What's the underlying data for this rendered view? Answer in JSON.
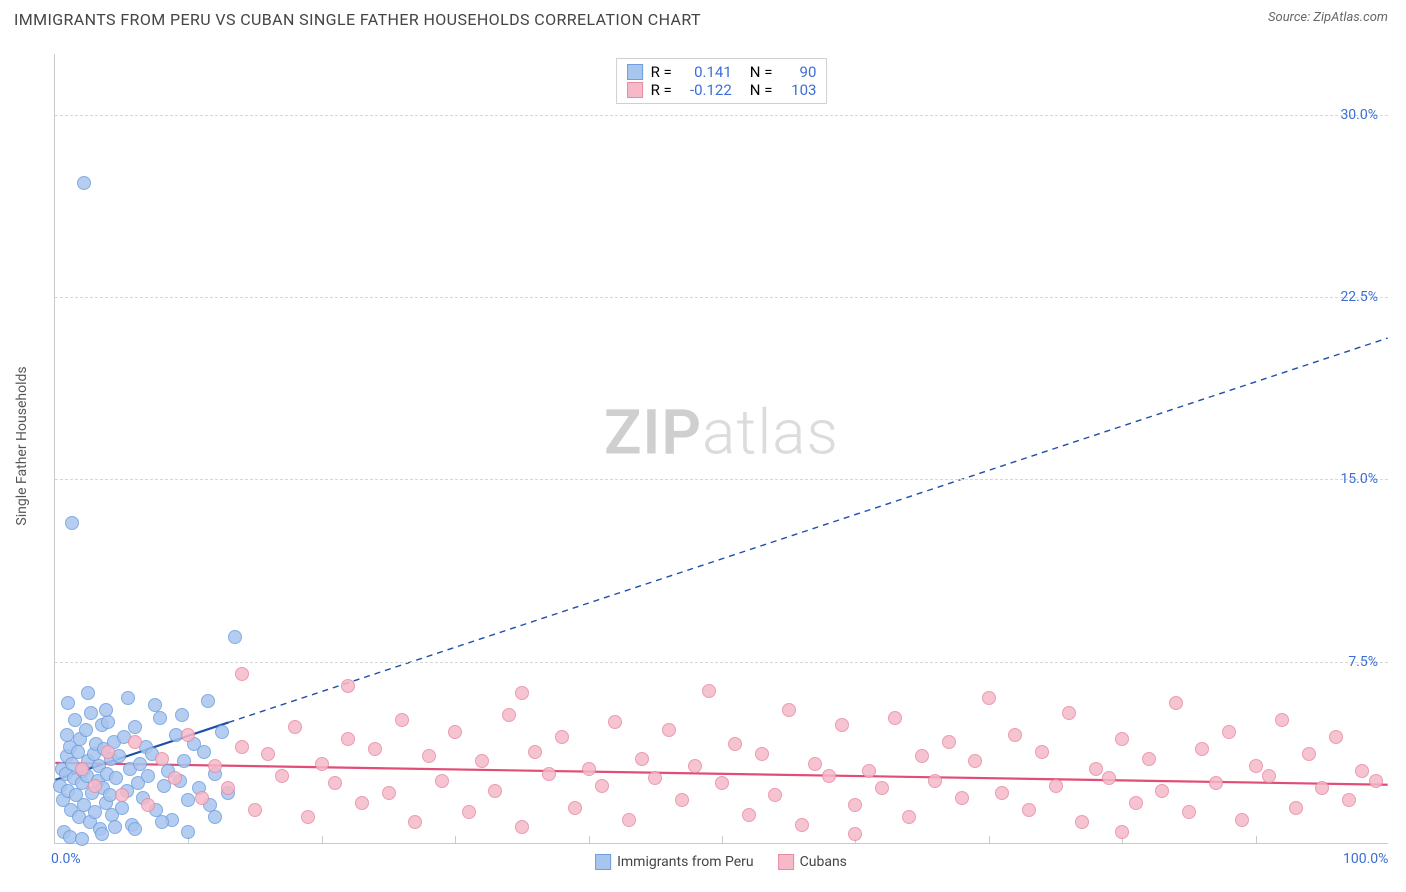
{
  "title": "IMMIGRANTS FROM PERU VS CUBAN SINGLE FATHER HOUSEHOLDS CORRELATION CHART",
  "source": "Source: ZipAtlas.com",
  "watermark_bold": "ZIP",
  "watermark_rest": "atlas",
  "ylabel": "Single Father Households",
  "chart": {
    "type": "scatter",
    "xlim": [
      0,
      100
    ],
    "ylim": [
      0,
      32.5
    ],
    "x_ticks": [
      0,
      100
    ],
    "x_tick_labels": [
      "0.0%",
      "100.0%"
    ],
    "x_minor_ticks": [
      10,
      20,
      30,
      40,
      50,
      60,
      70,
      80,
      90
    ],
    "y_grid": [
      7.5,
      15.0,
      22.5,
      30.0
    ],
    "y_grid_labels": [
      "7.5%",
      "15.0%",
      "22.5%",
      "30.0%"
    ],
    "background_color": "#ffffff",
    "grid_color": "#d7d7d7",
    "axis_color": "#c9c9c9",
    "tick_label_color_x": "#3b6fd6",
    "tick_label_color_y": "#3b6fd6",
    "marker_radius": 7,
    "marker_stroke_width": 1.2,
    "marker_fill_opacity": 0.35,
    "series": [
      {
        "id": "peru",
        "label": "Immigrants from Peru",
        "color_stroke": "#6f9fe0",
        "color_fill": "#a8c5ee",
        "R": "0.141",
        "N": "90",
        "trend": {
          "x1": 0,
          "y1": 2.6,
          "x2": 100,
          "y2": 20.8,
          "solid_until_x": 13,
          "color": "#1f4fa8",
          "width": 2.2
        },
        "points": [
          [
            0.4,
            2.4
          ],
          [
            0.5,
            3.1
          ],
          [
            0.6,
            1.8
          ],
          [
            0.8,
            2.9
          ],
          [
            0.9,
            3.6
          ],
          [
            1.0,
            2.2
          ],
          [
            1.1,
            4.0
          ],
          [
            1.2,
            1.4
          ],
          [
            1.3,
            3.3
          ],
          [
            1.4,
            2.7
          ],
          [
            1.5,
            5.1
          ],
          [
            1.6,
            2.0
          ],
          [
            1.7,
            3.8
          ],
          [
            1.8,
            1.1
          ],
          [
            1.9,
            4.3
          ],
          [
            2.0,
            2.5
          ],
          [
            2.1,
            3.0
          ],
          [
            2.2,
            1.6
          ],
          [
            2.3,
            4.7
          ],
          [
            2.4,
            2.8
          ],
          [
            2.5,
            3.4
          ],
          [
            2.6,
            0.9
          ],
          [
            2.7,
            5.4
          ],
          [
            2.8,
            2.1
          ],
          [
            2.9,
            3.7
          ],
          [
            3.0,
            1.3
          ],
          [
            3.1,
            4.1
          ],
          [
            3.2,
            2.6
          ],
          [
            3.3,
            3.2
          ],
          [
            3.4,
            0.6
          ],
          [
            3.5,
            4.9
          ],
          [
            3.6,
            2.3
          ],
          [
            3.7,
            3.9
          ],
          [
            3.8,
            1.7
          ],
          [
            3.9,
            2.9
          ],
          [
            4.0,
            5.0
          ],
          [
            4.1,
            2.0
          ],
          [
            4.2,
            3.5
          ],
          [
            4.3,
            1.2
          ],
          [
            4.4,
            4.2
          ],
          [
            4.6,
            2.7
          ],
          [
            4.8,
            3.6
          ],
          [
            5.0,
            1.5
          ],
          [
            5.2,
            4.4
          ],
          [
            5.4,
            2.2
          ],
          [
            5.6,
            3.1
          ],
          [
            5.8,
            0.8
          ],
          [
            6.0,
            4.8
          ],
          [
            6.2,
            2.5
          ],
          [
            6.4,
            3.3
          ],
          [
            6.6,
            1.9
          ],
          [
            6.8,
            4.0
          ],
          [
            7.0,
            2.8
          ],
          [
            7.3,
            3.7
          ],
          [
            7.6,
            1.4
          ],
          [
            7.9,
            5.2
          ],
          [
            8.2,
            2.4
          ],
          [
            8.5,
            3.0
          ],
          [
            8.8,
            1.0
          ],
          [
            9.1,
            4.5
          ],
          [
            9.4,
            2.6
          ],
          [
            9.7,
            3.4
          ],
          [
            10.0,
            1.8
          ],
          [
            10.4,
            4.1
          ],
          [
            10.8,
            2.3
          ],
          [
            11.2,
            3.8
          ],
          [
            11.6,
            1.6
          ],
          [
            12.0,
            2.9
          ],
          [
            12.5,
            4.6
          ],
          [
            13.0,
            2.1
          ],
          [
            13.5,
            8.5
          ],
          [
            0.7,
            0.5
          ],
          [
            1.1,
            0.3
          ],
          [
            2.0,
            0.2
          ],
          [
            3.5,
            0.4
          ],
          [
            4.5,
            0.7
          ],
          [
            6.0,
            0.6
          ],
          [
            8.0,
            0.9
          ],
          [
            10.0,
            0.5
          ],
          [
            12.0,
            1.1
          ],
          [
            1.0,
            5.8
          ],
          [
            2.5,
            6.2
          ],
          [
            3.8,
            5.5
          ],
          [
            5.5,
            6.0
          ],
          [
            7.5,
            5.7
          ],
          [
            9.5,
            5.3
          ],
          [
            11.5,
            5.9
          ],
          [
            1.3,
            13.2
          ],
          [
            2.2,
            27.2
          ],
          [
            0.9,
            4.5
          ]
        ]
      },
      {
        "id": "cubans",
        "label": "Cubans",
        "color_stroke": "#e88ca5",
        "color_fill": "#f5b9c8",
        "R": "-0.122",
        "N": "103",
        "trend": {
          "x1": 0,
          "y1": 3.3,
          "x2": 100,
          "y2": 2.4,
          "solid_until_x": 100,
          "color": "#e14d77",
          "width": 2.2
        },
        "points": [
          [
            2,
            3.1
          ],
          [
            3,
            2.4
          ],
          [
            4,
            3.8
          ],
          [
            5,
            2.0
          ],
          [
            6,
            4.2
          ],
          [
            7,
            1.6
          ],
          [
            8,
            3.5
          ],
          [
            9,
            2.7
          ],
          [
            10,
            4.5
          ],
          [
            11,
            1.9
          ],
          [
            12,
            3.2
          ],
          [
            13,
            2.3
          ],
          [
            14,
            4.0
          ],
          [
            15,
            1.4
          ],
          [
            16,
            3.7
          ],
          [
            17,
            2.8
          ],
          [
            18,
            4.8
          ],
          [
            19,
            1.1
          ],
          [
            20,
            3.3
          ],
          [
            21,
            2.5
          ],
          [
            22,
            4.3
          ],
          [
            23,
            1.7
          ],
          [
            24,
            3.9
          ],
          [
            25,
            2.1
          ],
          [
            26,
            5.1
          ],
          [
            27,
            0.9
          ],
          [
            28,
            3.6
          ],
          [
            29,
            2.6
          ],
          [
            30,
            4.6
          ],
          [
            31,
            1.3
          ],
          [
            32,
            3.4
          ],
          [
            33,
            2.2
          ],
          [
            34,
            5.3
          ],
          [
            35,
            0.7
          ],
          [
            36,
            3.8
          ],
          [
            37,
            2.9
          ],
          [
            38,
            4.4
          ],
          [
            39,
            1.5
          ],
          [
            40,
            3.1
          ],
          [
            41,
            2.4
          ],
          [
            42,
            5.0
          ],
          [
            43,
            1.0
          ],
          [
            44,
            3.5
          ],
          [
            45,
            2.7
          ],
          [
            46,
            4.7
          ],
          [
            47,
            1.8
          ],
          [
            48,
            3.2
          ],
          [
            49,
            6.3
          ],
          [
            50,
            2.5
          ],
          [
            51,
            4.1
          ],
          [
            52,
            1.2
          ],
          [
            53,
            3.7
          ],
          [
            54,
            2.0
          ],
          [
            55,
            5.5
          ],
          [
            56,
            0.8
          ],
          [
            57,
            3.3
          ],
          [
            58,
            2.8
          ],
          [
            59,
            4.9
          ],
          [
            60,
            1.6
          ],
          [
            61,
            3.0
          ],
          [
            62,
            2.3
          ],
          [
            63,
            5.2
          ],
          [
            64,
            1.1
          ],
          [
            65,
            3.6
          ],
          [
            66,
            2.6
          ],
          [
            67,
            4.2
          ],
          [
            68,
            1.9
          ],
          [
            69,
            3.4
          ],
          [
            70,
            6.0
          ],
          [
            71,
            2.1
          ],
          [
            72,
            4.5
          ],
          [
            73,
            1.4
          ],
          [
            74,
            3.8
          ],
          [
            75,
            2.4
          ],
          [
            76,
            5.4
          ],
          [
            77,
            0.9
          ],
          [
            78,
            3.1
          ],
          [
            79,
            2.7
          ],
          [
            80,
            4.3
          ],
          [
            81,
            1.7
          ],
          [
            82,
            3.5
          ],
          [
            83,
            2.2
          ],
          [
            84,
            5.8
          ],
          [
            85,
            1.3
          ],
          [
            86,
            3.9
          ],
          [
            87,
            2.5
          ],
          [
            88,
            4.6
          ],
          [
            89,
            1.0
          ],
          [
            90,
            3.2
          ],
          [
            91,
            2.8
          ],
          [
            92,
            5.1
          ],
          [
            93,
            1.5
          ],
          [
            94,
            3.7
          ],
          [
            95,
            2.3
          ],
          [
            96,
            4.4
          ],
          [
            97,
            1.8
          ],
          [
            98,
            3.0
          ],
          [
            99,
            2.6
          ],
          [
            14,
            7.0
          ],
          [
            22,
            6.5
          ],
          [
            35,
            6.2
          ],
          [
            60,
            0.4
          ],
          [
            80,
            0.5
          ]
        ]
      }
    ]
  }
}
